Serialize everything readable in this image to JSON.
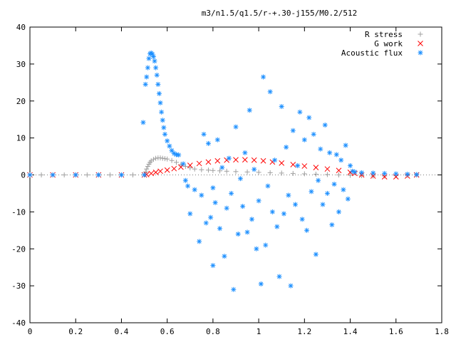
{
  "chart_data": {
    "type": "scatter",
    "title": "m3/n1.5/q1.5/r-+.30-j155/M0.2/512",
    "xlabel": "",
    "ylabel": "",
    "xlim": [
      0,
      1.8
    ],
    "ylim": [
      -40,
      40
    ],
    "x_ticks": [
      "0",
      "0.2",
      "0.4",
      "0.6",
      "0.8",
      "1",
      "1.2",
      "1.4",
      "1.6",
      "1.8"
    ],
    "y_ticks": [
      "40",
      "30",
      "20",
      "10",
      "0",
      "-10",
      "-20",
      "-30",
      "-40"
    ],
    "grid": false,
    "legend_position": "top-right",
    "series": [
      {
        "name": "R stress",
        "marker": "+",
        "color": "#a0a0a0",
        "points": [
          [
            0.0,
            0
          ],
          [
            0.05,
            0
          ],
          [
            0.1,
            0
          ],
          [
            0.15,
            0
          ],
          [
            0.2,
            0
          ],
          [
            0.25,
            0
          ],
          [
            0.3,
            0
          ],
          [
            0.35,
            0
          ],
          [
            0.4,
            0
          ],
          [
            0.45,
            0
          ],
          [
            0.5,
            0
          ],
          [
            0.505,
            0.8
          ],
          [
            0.51,
            1.6
          ],
          [
            0.515,
            2.3
          ],
          [
            0.52,
            2.9
          ],
          [
            0.525,
            3.4
          ],
          [
            0.53,
            3.8
          ],
          [
            0.54,
            4.2
          ],
          [
            0.55,
            4.5
          ],
          [
            0.56,
            4.6
          ],
          [
            0.57,
            4.6
          ],
          [
            0.58,
            4.5
          ],
          [
            0.59,
            4.4
          ],
          [
            0.6,
            4.3
          ],
          [
            0.62,
            3.9
          ],
          [
            0.64,
            3.4
          ],
          [
            0.66,
            2.8
          ],
          [
            0.68,
            2.3
          ],
          [
            0.7,
            1.9
          ],
          [
            0.72,
            1.6
          ],
          [
            0.75,
            1.4
          ],
          [
            0.78,
            1.3
          ],
          [
            0.8,
            1.2
          ],
          [
            0.83,
            1.1
          ],
          [
            0.86,
            1.0
          ],
          [
            0.9,
            0.9
          ],
          [
            0.95,
            0.8
          ],
          [
            1.0,
            0.7
          ],
          [
            1.05,
            0.6
          ],
          [
            1.1,
            0.5
          ],
          [
            1.15,
            0.4
          ],
          [
            1.2,
            0.3
          ],
          [
            1.25,
            0.2
          ],
          [
            1.3,
            0.1
          ],
          [
            1.35,
            0.0
          ],
          [
            1.4,
            -0.1
          ],
          [
            1.45,
            -0.2
          ],
          [
            1.5,
            -0.3
          ],
          [
            1.55,
            -0.3
          ],
          [
            1.6,
            -0.2
          ],
          [
            1.65,
            -0.1
          ],
          [
            1.69,
            0
          ]
        ]
      },
      {
        "name": "G work",
        "marker": "x",
        "color": "#ff0000",
        "points": [
          [
            0.0,
            0
          ],
          [
            0.1,
            0
          ],
          [
            0.2,
            0
          ],
          [
            0.3,
            0
          ],
          [
            0.4,
            0
          ],
          [
            0.5,
            0
          ],
          [
            0.51,
            0.1
          ],
          [
            0.53,
            0.4
          ],
          [
            0.55,
            0.7
          ],
          [
            0.57,
            1.0
          ],
          [
            0.6,
            1.3
          ],
          [
            0.63,
            1.7
          ],
          [
            0.66,
            2.1
          ],
          [
            0.7,
            2.6
          ],
          [
            0.74,
            3.1
          ],
          [
            0.78,
            3.5
          ],
          [
            0.82,
            3.8
          ],
          [
            0.86,
            4.0
          ],
          [
            0.9,
            4.1
          ],
          [
            0.94,
            4.1
          ],
          [
            0.98,
            4.0
          ],
          [
            1.02,
            3.8
          ],
          [
            1.06,
            3.5
          ],
          [
            1.1,
            3.2
          ],
          [
            1.15,
            2.8
          ],
          [
            1.2,
            2.4
          ],
          [
            1.25,
            2.0
          ],
          [
            1.3,
            1.6
          ],
          [
            1.35,
            1.2
          ],
          [
            1.4,
            0.7
          ],
          [
            1.42,
            0.4
          ],
          [
            1.45,
            0.0
          ],
          [
            1.5,
            -0.3
          ],
          [
            1.55,
            -0.5
          ],
          [
            1.6,
            -0.5
          ],
          [
            1.65,
            -0.3
          ],
          [
            1.69,
            0
          ]
        ]
      },
      {
        "name": "Acoustic flux",
        "marker": "*",
        "color": "#1e90ff",
        "points": [
          [
            0.0,
            0
          ],
          [
            0.1,
            0
          ],
          [
            0.2,
            0
          ],
          [
            0.3,
            0
          ],
          [
            0.4,
            0
          ],
          [
            0.5,
            0
          ],
          [
            0.495,
            14.2
          ],
          [
            0.505,
            24.5
          ],
          [
            0.51,
            26.5
          ],
          [
            0.515,
            29.0
          ],
          [
            0.52,
            31.5
          ],
          [
            0.525,
            32.8
          ],
          [
            0.53,
            33.0
          ],
          [
            0.535,
            32.7
          ],
          [
            0.54,
            32.0
          ],
          [
            0.545,
            30.8
          ],
          [
            0.55,
            29.0
          ],
          [
            0.555,
            27.0
          ],
          [
            0.56,
            24.5
          ],
          [
            0.565,
            22.0
          ],
          [
            0.57,
            19.5
          ],
          [
            0.575,
            17.0
          ],
          [
            0.58,
            14.8
          ],
          [
            0.585,
            12.8
          ],
          [
            0.59,
            11.0
          ],
          [
            0.6,
            9.2
          ],
          [
            0.61,
            7.8
          ],
          [
            0.62,
            6.6
          ],
          [
            0.63,
            5.8
          ],
          [
            0.64,
            5.5
          ],
          [
            0.65,
            5.4
          ],
          [
            0.67,
            3.0
          ],
          [
            0.68,
            -1.5
          ],
          [
            0.69,
            -3.0
          ],
          [
            0.7,
            -10.5
          ],
          [
            0.72,
            -4.0
          ],
          [
            0.74,
            -18.0
          ],
          [
            0.75,
            -5.5
          ],
          [
            0.76,
            11.0
          ],
          [
            0.77,
            -13.0
          ],
          [
            0.78,
            8.5
          ],
          [
            0.79,
            -11.5
          ],
          [
            0.8,
            -24.5
          ],
          [
            0.8,
            -3.5
          ],
          [
            0.81,
            -7.5
          ],
          [
            0.82,
            9.5
          ],
          [
            0.83,
            -14.5
          ],
          [
            0.84,
            2.0
          ],
          [
            0.85,
            -22.0
          ],
          [
            0.86,
            -9.0
          ],
          [
            0.87,
            4.5
          ],
          [
            0.88,
            -5.0
          ],
          [
            0.89,
            -31.0
          ],
          [
            0.9,
            13.0
          ],
          [
            0.91,
            -16.0
          ],
          [
            0.92,
            -1.0
          ],
          [
            0.93,
            -8.5
          ],
          [
            0.94,
            6.0
          ],
          [
            0.95,
            -15.5
          ],
          [
            0.96,
            17.5
          ],
          [
            0.97,
            -12.0
          ],
          [
            0.98,
            1.5
          ],
          [
            0.99,
            -20.0
          ],
          [
            1.0,
            -7.0
          ],
          [
            1.01,
            -29.5
          ],
          [
            1.02,
            26.5
          ],
          [
            1.03,
            -19.0
          ],
          [
            1.04,
            -3.0
          ],
          [
            1.05,
            22.5
          ],
          [
            1.06,
            -10.0
          ],
          [
            1.07,
            4.0
          ],
          [
            1.08,
            -14.0
          ],
          [
            1.09,
            -27.5
          ],
          [
            1.1,
            18.5
          ],
          [
            1.11,
            -10.5
          ],
          [
            1.12,
            7.5
          ],
          [
            1.13,
            -5.5
          ],
          [
            1.14,
            -30.0
          ],
          [
            1.15,
            12.0
          ],
          [
            1.16,
            -8.0
          ],
          [
            1.17,
            2.5
          ],
          [
            1.18,
            17.0
          ],
          [
            1.19,
            -12.0
          ],
          [
            1.2,
            9.5
          ],
          [
            1.21,
            -15.0
          ],
          [
            1.22,
            15.5
          ],
          [
            1.23,
            -4.5
          ],
          [
            1.24,
            11.0
          ],
          [
            1.25,
            -21.5
          ],
          [
            1.26,
            -1.5
          ],
          [
            1.27,
            7.0
          ],
          [
            1.28,
            -8.0
          ],
          [
            1.29,
            13.5
          ],
          [
            1.3,
            -5.0
          ],
          [
            1.31,
            6.0
          ],
          [
            1.32,
            -13.5
          ],
          [
            1.33,
            -2.5
          ],
          [
            1.34,
            5.5
          ],
          [
            1.35,
            -10.0
          ],
          [
            1.36,
            4.0
          ],
          [
            1.37,
            -4.0
          ],
          [
            1.38,
            8.0
          ],
          [
            1.39,
            -6.5
          ],
          [
            1.4,
            2.5
          ],
          [
            1.41,
            1.0
          ],
          [
            1.42,
            0.8
          ],
          [
            1.45,
            0.6
          ],
          [
            1.5,
            0.5
          ],
          [
            1.55,
            0.4
          ],
          [
            1.6,
            0.3
          ],
          [
            1.65,
            0.2
          ],
          [
            1.69,
            0.1
          ]
        ]
      }
    ]
  }
}
